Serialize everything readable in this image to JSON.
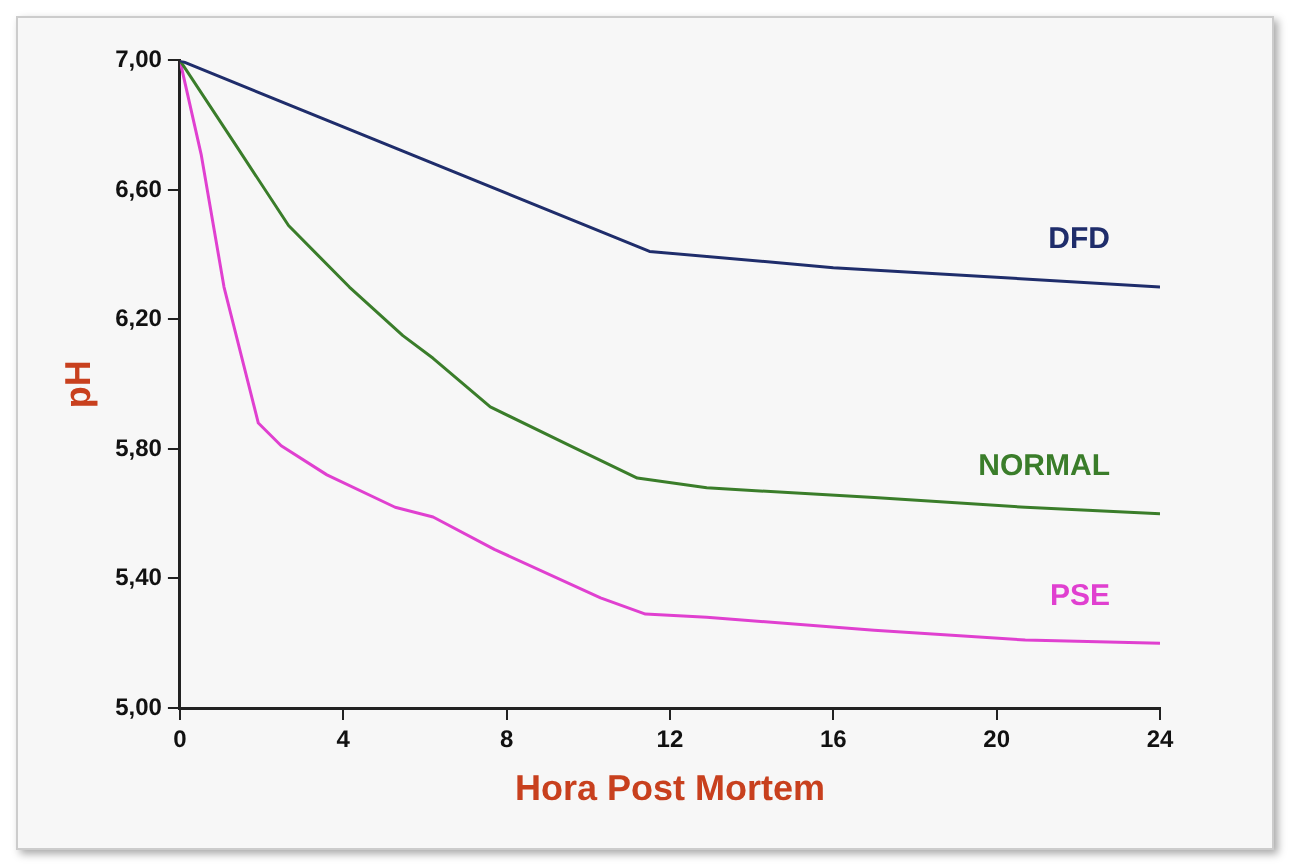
{
  "chart_data": {
    "type": "line",
    "xlabel": "Hora Post Mortem",
    "ylabel": "pH",
    "xlim": [
      0,
      24
    ],
    "xticks": [
      0,
      4,
      8,
      12,
      16,
      20,
      24
    ],
    "ylim": [
      5,
      7
    ],
    "yticks": [
      {
        "value": 5,
        "label": "5,00"
      },
      {
        "value": 5.4,
        "label": "5,40"
      },
      {
        "value": 5.8,
        "label": "5,80"
      },
      {
        "value": 6.2,
        "label": "6,20"
      },
      {
        "value": 6.6,
        "label": "6,60"
      },
      {
        "value": 7,
        "label": "7,00"
      }
    ],
    "grid": false,
    "legend": false,
    "marker": "none",
    "line_style": "solid",
    "series": [
      {
        "name": "DFD",
        "color": "#1f2d6b",
        "x": [
          0,
          11.5,
          16,
          20,
          24
        ],
        "values": [
          7.0,
          6.41,
          6.36,
          6.33,
          6.3
        ]
      },
      {
        "name": "NORMAL",
        "color": "#3a7d2a",
        "x": [
          0,
          1.36,
          2.66,
          4.15,
          5.46,
          6.2,
          7.6,
          9.55,
          11.2,
          12.9,
          17,
          20.7,
          24
        ],
        "values": [
          7.0,
          6.74,
          6.49,
          6.3,
          6.15,
          6.08,
          5.93,
          5.81,
          5.71,
          5.68,
          5.65,
          5.62,
          5.6
        ]
      },
      {
        "name": "PSE",
        "color": "#e040d0",
        "x": [
          0,
          0.52,
          1.08,
          1.92,
          2.48,
          3.6,
          5.27,
          6.2,
          7.7,
          10.3,
          11.4,
          12.9,
          17,
          20.7,
          24
        ],
        "values": [
          7.0,
          6.71,
          6.3,
          5.88,
          5.81,
          5.72,
          5.62,
          5.59,
          5.49,
          5.34,
          5.29,
          5.28,
          5.24,
          5.21,
          5.2
        ]
      }
    ]
  }
}
